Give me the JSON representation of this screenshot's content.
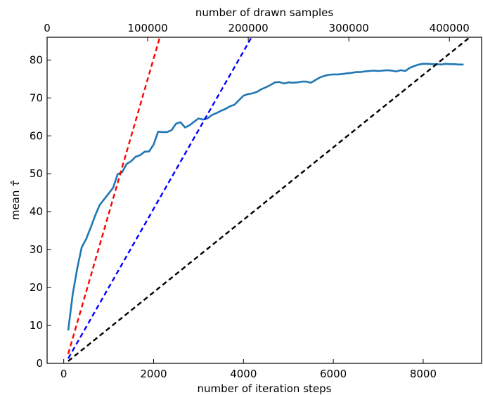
{
  "chart_data": {
    "type": "line",
    "title": "",
    "xlabel": "number of iteration steps",
    "ylabel": "mean τ̂",
    "ylabel_text": "mean",
    "ylabel_symbol": "τ̂",
    "top_xlabel": "number of drawn samples",
    "xlim": [
      -370,
      9300
    ],
    "ylim": [
      0,
      86
    ],
    "top_xlim": [
      0,
      432000
    ],
    "xticks": [
      0,
      2000,
      4000,
      6000,
      8000
    ],
    "xtick_labels": [
      "0",
      "2000",
      "4000",
      "6000",
      "8000"
    ],
    "yticks": [
      0,
      10,
      20,
      30,
      40,
      50,
      60,
      70,
      80
    ],
    "ytick_labels": [
      "0",
      "10",
      "20",
      "30",
      "40",
      "50",
      "60",
      "70",
      "80"
    ],
    "top_xticks": [
      0,
      100000,
      200000,
      300000,
      400000
    ],
    "top_xtick_labels": [
      "0",
      "100000",
      "200000",
      "300000",
      "400000"
    ],
    "grid": false,
    "series": [
      {
        "color": "#1f77b4",
        "style": "solid",
        "x": [
          100,
          200,
          300,
          400,
          500,
          600,
          700,
          800,
          900,
          1000,
          1100,
          1200,
          1300,
          1400,
          1500,
          1600,
          1700,
          1800,
          1900,
          2000,
          2100,
          2200,
          2300,
          2400,
          2500,
          2600,
          2700,
          2800,
          2900,
          3000,
          3100,
          3200,
          3300,
          3400,
          3500,
          3600,
          3700,
          3800,
          3900,
          4000,
          4100,
          4200,
          4300,
          4400,
          4500,
          4600,
          4700,
          4800,
          4900,
          5000,
          5100,
          5200,
          5300,
          5400,
          5500,
          5600,
          5700,
          5800,
          5900,
          6000,
          6100,
          6200,
          6300,
          6400,
          6500,
          6600,
          6700,
          6800,
          6900,
          7000,
          7100,
          7200,
          7300,
          7400,
          7500,
          7600,
          7700,
          7800,
          7900,
          8000,
          8100,
          8200,
          8300,
          8400,
          8500,
          8600,
          8700,
          8800,
          8900
        ],
        "y": [
          8.7,
          18.2,
          25.0,
          30.6,
          32.8,
          35.8,
          39.0,
          41.8,
          43.3,
          44.8,
          46.3,
          49.9,
          50.4,
          52.6,
          53.3,
          54.5,
          54.9,
          55.8,
          55.9,
          57.7,
          61.1,
          61.0,
          61.0,
          61.5,
          63.2,
          63.6,
          62.2,
          62.8,
          63.7,
          64.6,
          64.3,
          64.6,
          65.5,
          66.0,
          66.6,
          67.1,
          67.8,
          68.2,
          69.4,
          70.6,
          71.0,
          71.2,
          71.6,
          72.3,
          72.8,
          73.4,
          74.1,
          74.2,
          73.8,
          74.1,
          74.0,
          74.1,
          74.3,
          74.3,
          74.0,
          74.7,
          75.4,
          75.8,
          76.1,
          76.2,
          76.2,
          76.3,
          76.5,
          76.6,
          76.8,
          76.8,
          77.0,
          77.1,
          77.2,
          77.1,
          77.2,
          77.3,
          77.2,
          77.0,
          77.3,
          77.1,
          77.9,
          78.4,
          78.8,
          79.0,
          79.0,
          78.9,
          78.9,
          78.8,
          79.0,
          78.9,
          78.9,
          78.8,
          78.8
        ]
      },
      {
        "color": "#ff0000",
        "style": "dashed",
        "x": [
          100,
          2200
        ],
        "y": [
          2.5,
          88.5
        ]
      },
      {
        "color": "#0000ff",
        "style": "dashed",
        "x": [
          100,
          4300
        ],
        "y": [
          1.3,
          88.5
        ]
      },
      {
        "color": "#000000",
        "style": "dashed",
        "x": [
          100,
          9300
        ],
        "y": [
          0.6,
          88.5
        ]
      }
    ]
  }
}
